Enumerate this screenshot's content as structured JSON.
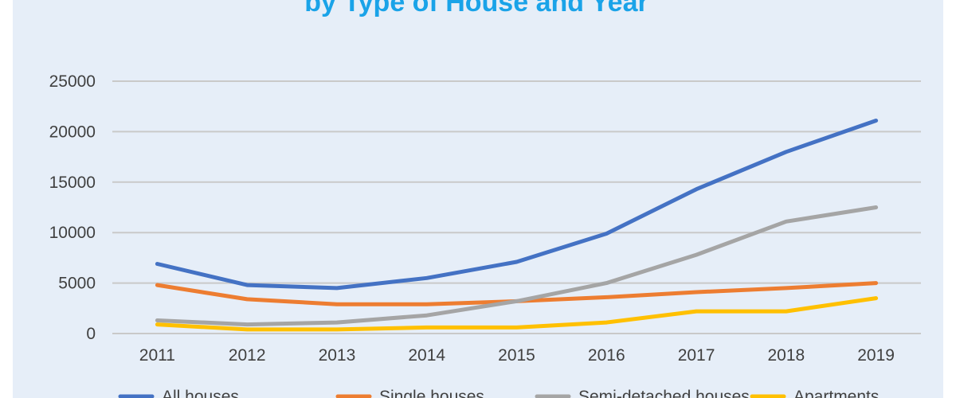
{
  "chart_data": {
    "type": "line",
    "title": "by Type of House and Year",
    "title_color": "#1aa3e8",
    "x": [
      "2011",
      "2012",
      "2013",
      "2014",
      "2015",
      "2016",
      "2017",
      "2018",
      "2019"
    ],
    "ylim": [
      0,
      25000
    ],
    "yticks": [
      "0",
      "5000",
      "10000",
      "15000",
      "20000",
      "25000"
    ],
    "grid": true,
    "legend_position": "bottom",
    "series": [
      {
        "name": "All houses",
        "color": "#4472c4",
        "values": [
          6900,
          4800,
          4500,
          5500,
          7100,
          9900,
          14300,
          18000,
          21100
        ]
      },
      {
        "name": "Single houses",
        "color": "#ed7d31",
        "values": [
          4800,
          3400,
          2900,
          2900,
          3200,
          3600,
          4100,
          4500,
          5000
        ]
      },
      {
        "name": "Semi-detached houses",
        "color": "#a5a5a5",
        "values": [
          1300,
          900,
          1100,
          1800,
          3200,
          5000,
          7800,
          11100,
          12500
        ]
      },
      {
        "name": "Apartments",
        "color": "#ffc000",
        "values": [
          900,
          400,
          400,
          600,
          600,
          1100,
          2200,
          2200,
          3500
        ]
      }
    ]
  }
}
